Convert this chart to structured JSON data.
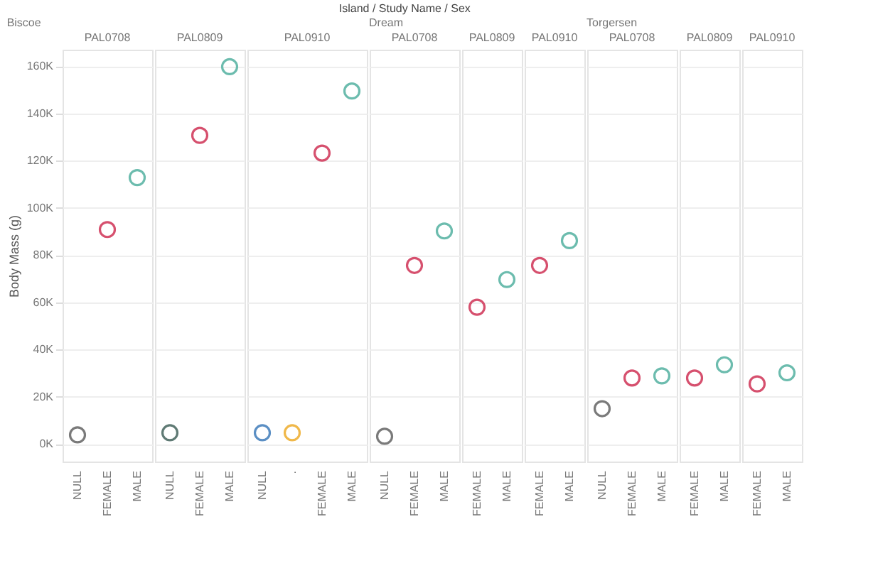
{
  "chart_data": [
    {
      "type": "scatter",
      "title": "PAL0708",
      "subtitle": "Biscoe",
      "annotations": [
        "Island / Study Name / Sex"
      ],
      "ylabel": "Body Mass (g)",
      "categories": [
        "NULL",
        "FEMALE",
        "MALE"
      ],
      "values": [
        3800,
        90800,
        112800
      ],
      "colors": [
        "#7a7a7a",
        "#d6506e",
        "#6cbcae"
      ],
      "ylim": [
        -7500,
        167000
      ],
      "yticks": [
        {
          "value": 0,
          "label": "0K"
        },
        {
          "value": 20000,
          "label": "20K"
        },
        {
          "value": 40000,
          "label": "40K"
        },
        {
          "value": 60000,
          "label": "60K"
        },
        {
          "value": 80000,
          "label": "80K"
        },
        {
          "value": 100000,
          "label": "100K"
        },
        {
          "value": 120000,
          "label": "120K"
        },
        {
          "value": 140000,
          "label": "140K"
        },
        {
          "value": 160000,
          "label": "160K"
        }
      ],
      "grid": "y",
      "marker": "circle"
    },
    {
      "type": "scatter",
      "title": "PAL0809",
      "categories": [
        "NULL",
        "FEMALE",
        "MALE"
      ],
      "values": [
        4700,
        130700,
        159800
      ],
      "colors": [
        "#5f7a74",
        "#d6506e",
        "#6cbcae"
      ],
      "ylim": [
        -7500,
        167000
      ],
      "yticks": [
        0,
        20000,
        40000,
        60000,
        80000,
        100000,
        120000,
        140000,
        160000
      ],
      "grid": "y",
      "marker": "circle",
      "tick_labels": "x"
    },
    {
      "type": "scatter",
      "title": "PAL0910",
      "categories": [
        "NULL",
        ".",
        "FEMALE",
        "MALE"
      ],
      "values": [
        4700,
        4700,
        123200,
        149500
      ],
      "colors": [
        "#5b8fc4",
        "#f0b84a",
        "#d6506e",
        "#6cbcae"
      ],
      "ylim": [
        -7500,
        167000
      ],
      "yticks": [
        0,
        20000,
        40000,
        60000,
        80000,
        100000,
        120000,
        140000,
        160000
      ],
      "grid": "y",
      "marker": "circle",
      "tick_labels": "x"
    },
    {
      "type": "scatter",
      "title": "PAL0708",
      "subtitle": "Dream",
      "categories": [
        "NULL",
        "FEMALE",
        "MALE"
      ],
      "values": [
        3200,
        75600,
        90200
      ],
      "colors": [
        "#7a7a7a",
        "#d6506e",
        "#6cbcae"
      ],
      "ylim": [
        -7500,
        167000
      ],
      "yticks": [
        0,
        20000,
        40000,
        60000,
        80000,
        100000,
        120000,
        140000,
        160000
      ],
      "grid": "y",
      "marker": "circle",
      "tick_labels": "x"
    },
    {
      "type": "scatter",
      "title": "PAL0809",
      "categories": [
        "FEMALE",
        "MALE"
      ],
      "values": [
        57900,
        69600
      ],
      "colors": [
        "#d6506e",
        "#6cbcae"
      ],
      "ylim": [
        -7500,
        167000
      ],
      "yticks": [
        0,
        20000,
        40000,
        60000,
        80000,
        100000,
        120000,
        140000,
        160000
      ],
      "grid": "y",
      "marker": "circle",
      "tick_labels": "x"
    },
    {
      "type": "scatter",
      "title": "PAL0910",
      "categories": [
        "FEMALE",
        "MALE"
      ],
      "values": [
        75600,
        86100
      ],
      "colors": [
        "#d6506e",
        "#6cbcae"
      ],
      "ylim": [
        -7500,
        167000
      ],
      "yticks": [
        0,
        20000,
        40000,
        60000,
        80000,
        100000,
        120000,
        140000,
        160000
      ],
      "grid": "y",
      "marker": "circle",
      "tick_labels": "x"
    },
    {
      "type": "scatter",
      "title": "PAL0708",
      "subtitle": "Torgersen",
      "categories": [
        "NULL",
        "FEMALE",
        "MALE"
      ],
      "values": [
        14900,
        27900,
        28800
      ],
      "colors": [
        "#7a7a7a",
        "#d6506e",
        "#6cbcae"
      ],
      "ylim": [
        -7500,
        167000
      ],
      "yticks": [
        0,
        20000,
        40000,
        60000,
        80000,
        100000,
        120000,
        140000,
        160000
      ],
      "grid": "y",
      "marker": "circle",
      "tick_labels": "x"
    },
    {
      "type": "scatter",
      "title": "PAL0809",
      "categories": [
        "FEMALE",
        "MALE"
      ],
      "values": [
        27900,
        33500
      ],
      "colors": [
        "#d6506e",
        "#6cbcae"
      ],
      "ylim": [
        -7500,
        167000
      ],
      "yticks": [
        0,
        20000,
        40000,
        60000,
        80000,
        100000,
        120000,
        140000,
        160000
      ],
      "grid": "y",
      "marker": "circle",
      "tick_labels": "x"
    },
    {
      "type": "scatter",
      "title": "PAL0910",
      "categories": [
        "FEMALE",
        "MALE"
      ],
      "values": [
        25400,
        30100
      ],
      "colors": [
        "#d6506e",
        "#6cbcae"
      ],
      "ylim": [
        -7500,
        167000
      ],
      "yticks": [
        0,
        20000,
        40000,
        60000,
        80000,
        100000,
        120000,
        140000,
        160000
      ],
      "grid": "y",
      "marker": "circle",
      "tick_labels": "x"
    }
  ]
}
